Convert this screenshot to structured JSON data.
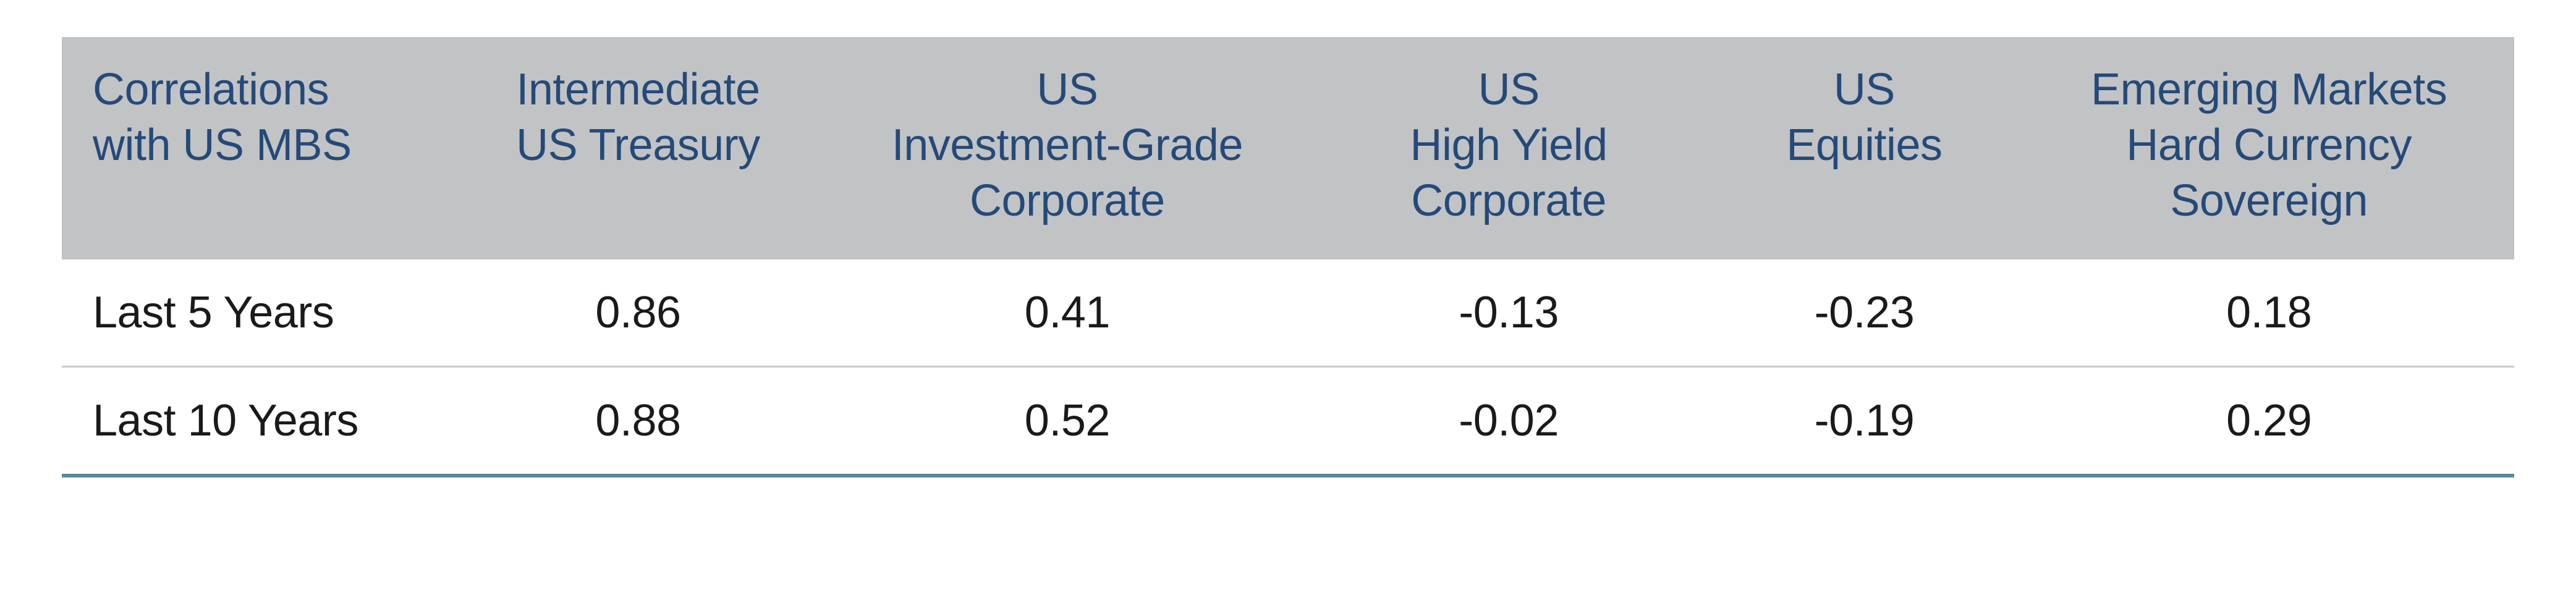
{
  "table": {
    "type": "table",
    "header_bg": "#c2c3c5",
    "header_text_color": "#244a7a",
    "body_text_color": "#1a1a1a",
    "row_divider_color": "#c9cacc",
    "bottom_rule_color": "#5a8a99",
    "font_size_pt": 54,
    "columns": [
      {
        "id": "rowhead",
        "lines": [
          "Correlations",
          "with US MBS"
        ],
        "align": "left",
        "width_pct": 16
      },
      {
        "id": "ust",
        "lines": [
          "Intermediate",
          "US Treasury"
        ],
        "align": "center",
        "width_pct": 15
      },
      {
        "id": "ig",
        "lines": [
          "US",
          "Investment-Grade",
          "Corporate"
        ],
        "align": "center",
        "width_pct": 20
      },
      {
        "id": "hy",
        "lines": [
          "US",
          "High Yield",
          "Corporate"
        ],
        "align": "center",
        "width_pct": 16
      },
      {
        "id": "eq",
        "lines": [
          "US",
          "Equities"
        ],
        "align": "center",
        "width_pct": 13
      },
      {
        "id": "em",
        "lines": [
          "Emerging Markets",
          "Hard Currency",
          "Sovereign"
        ],
        "align": "center",
        "width_pct": 20
      }
    ],
    "rows": [
      {
        "label": "Last 5 Years",
        "values": [
          "0.86",
          "0.41",
          "-0.13",
          "-0.23",
          "0.18"
        ]
      },
      {
        "label": "Last 10 Years",
        "values": [
          "0.88",
          "0.52",
          "-0.02",
          "-0.19",
          "0.29"
        ]
      }
    ]
  }
}
